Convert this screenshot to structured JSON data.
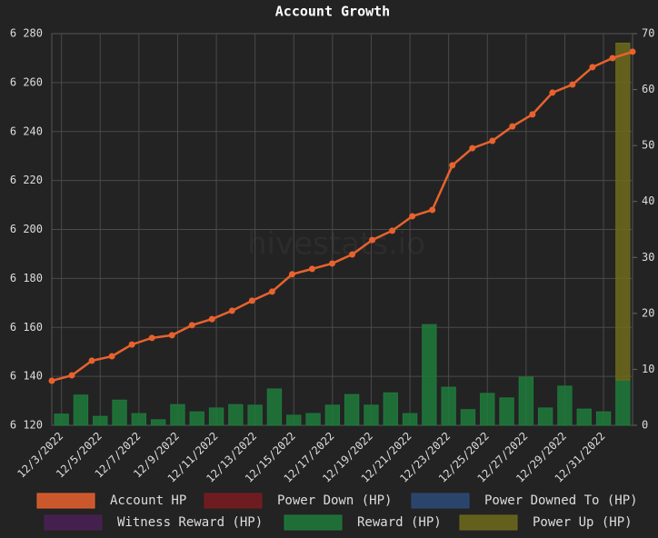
{
  "chart_data": {
    "type": "line_bar",
    "title": "Account Growth",
    "watermark": "hivestats.io",
    "categories": [
      "12/3/2022",
      null,
      "12/5/2022",
      null,
      "12/7/2022",
      null,
      "12/9/2022",
      null,
      "12/11/2022",
      null,
      "12/13/2022",
      null,
      "12/15/2022",
      null,
      "12/17/2022",
      null,
      "12/19/2022",
      null,
      "12/21/2022",
      null,
      "12/23/2022",
      null,
      "12/25/2022",
      null,
      "12/27/2022",
      null,
      "12/29/2022",
      null,
      "12/31/2022",
      null
    ],
    "ylim": [
      6120,
      6280
    ],
    "yticks": [
      {
        "value": 6120,
        "label": "6 120"
      },
      {
        "value": 6140,
        "label": "6 140"
      },
      {
        "value": 6160,
        "label": "6 160"
      },
      {
        "value": 6180,
        "label": "6 180"
      },
      {
        "value": 6200,
        "label": "6 200"
      },
      {
        "value": 6220,
        "label": "6 220"
      },
      {
        "value": 6240,
        "label": "6 240"
      },
      {
        "value": 6260,
        "label": "6 260"
      },
      {
        "value": 6280,
        "label": "6 280"
      }
    ],
    "y2lim": [
      0,
      70
    ],
    "y2ticks": [
      0,
      10,
      20,
      30,
      40,
      50,
      60,
      70
    ],
    "grid": true,
    "legend": "bottom",
    "series": [
      {
        "name": "Account HP",
        "kind": "line",
        "color": "#e8622e",
        "values": [
          6138.2,
          6140.4,
          6146.4,
          6148.2,
          6153.0,
          6155.7,
          6156.8,
          6160.9,
          6163.4,
          6166.8,
          6170.9,
          6174.6,
          6181.7,
          6183.9,
          6186.1,
          6189.8,
          6195.7,
          6199.5,
          6205.4,
          6208.0,
          6226.2,
          6233.2,
          6236.2,
          6242.1,
          6247.0,
          6255.9,
          6259.2,
          6266.3,
          6270.0,
          6272.6
        ]
      },
      {
        "name": "Power Down (HP)",
        "kind": "bar",
        "axis": "y2",
        "color": "#7a1c1f",
        "values": [
          0,
          0,
          0,
          0,
          0,
          0,
          0,
          0,
          0,
          0,
          0,
          0,
          0,
          0,
          0,
          0,
          0,
          0,
          0,
          0,
          0,
          0,
          0,
          0,
          0,
          0,
          0,
          0,
          0,
          0
        ]
      },
      {
        "name": "Power Downed To (HP)",
        "kind": "bar",
        "axis": "y2",
        "color": "#2c4a78",
        "values": [
          0,
          0,
          0,
          0,
          0,
          0,
          0,
          0,
          0,
          0,
          0,
          0,
          0,
          0,
          0,
          0,
          0,
          0,
          0,
          0,
          0,
          0,
          0,
          0,
          0,
          0,
          0,
          0,
          0,
          0
        ]
      },
      {
        "name": "Witness Reward (HP)",
        "kind": "bar",
        "axis": "y2",
        "color": "#4a2056",
        "values": [
          0,
          0,
          0,
          0,
          0,
          0,
          0,
          0,
          0,
          0,
          0,
          0,
          0,
          0,
          0,
          0,
          0,
          0,
          0,
          0,
          0,
          0,
          0,
          0,
          0,
          0,
          0,
          0,
          0,
          0
        ]
      },
      {
        "name": "Reward (HP)",
        "kind": "bar",
        "axis": "y2",
        "color": "#1f7a3b",
        "values": [
          2.0,
          5.4,
          1.6,
          4.5,
          2.1,
          1.0,
          3.7,
          2.4,
          3.1,
          3.7,
          3.6,
          6.5,
          1.8,
          2.1,
          3.6,
          5.5,
          3.6,
          5.8,
          2.1,
          18.0,
          6.8,
          2.8,
          5.7,
          4.9,
          8.6,
          3.1,
          7.0,
          2.9,
          2.4,
          8.1
        ]
      },
      {
        "name": "Power Up (HP)",
        "kind": "bar",
        "axis": "y2",
        "color": "#6e6a1c",
        "values": [
          0,
          0,
          0,
          0,
          0,
          0,
          0,
          0,
          0,
          0,
          0,
          0,
          0,
          0,
          0,
          0,
          0,
          0,
          0,
          0,
          0,
          0,
          0,
          0,
          0,
          0,
          0,
          0,
          0,
          60.2
        ]
      }
    ]
  }
}
